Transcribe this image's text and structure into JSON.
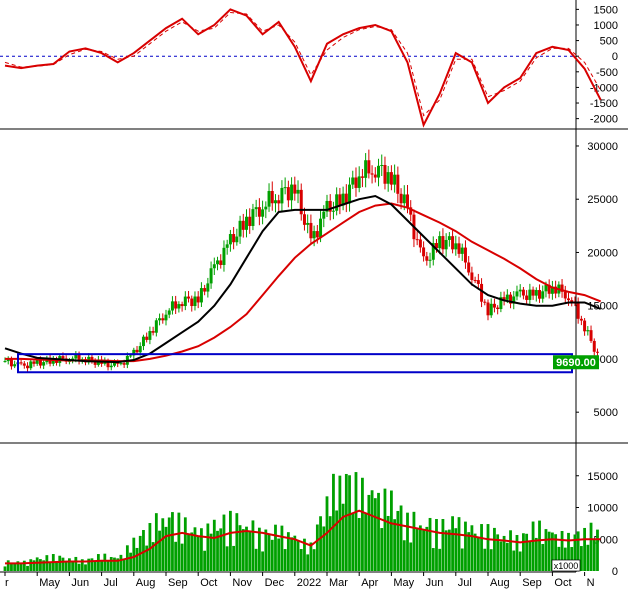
{
  "chart_data": [
    {
      "type": "line",
      "panel": "oscillator",
      "y_ticks": [
        "1500",
        "1000",
        "500",
        "0",
        "-500",
        "-1000",
        "-1500",
        "-2000"
      ],
      "ylim": [
        -2300,
        1800
      ],
      "reference_line": 0,
      "colors": {
        "main": "#d80000",
        "signal": "#d80000",
        "reference": "#0000c8"
      },
      "x_month_index": [
        0,
        0.5,
        1,
        1.5,
        2,
        2.5,
        3,
        3.5,
        4,
        4.5,
        5,
        5.5,
        6,
        6.5,
        7,
        7.5,
        8,
        8.5,
        9,
        9.5,
        10,
        10.5,
        11,
        11.5,
        12,
        12.5,
        13,
        13.5,
        14,
        14.5,
        15,
        15.5,
        16,
        16.5,
        17,
        17.5,
        18,
        18.5
      ],
      "series": [
        {
          "values": [
            -300,
            -380,
            -300,
            -250,
            150,
            250,
            100,
            -200,
            100,
            500,
            900,
            1200,
            700,
            1000,
            1500,
            1300,
            700,
            1100,
            300,
            -800,
            400,
            700,
            900,
            1000,
            800,
            -200,
            -2200,
            -1200,
            100,
            -200,
            -1500,
            -1000,
            -700,
            100,
            300,
            200,
            -400,
            -1400
          ]
        },
        {
          "values": [
            -200,
            -350,
            -320,
            -270,
            50,
            220,
            150,
            -100,
            0,
            400,
            800,
            1100,
            800,
            900,
            1400,
            1350,
            800,
            1000,
            450,
            -600,
            200,
            600,
            850,
            950,
            850,
            100,
            -1900,
            -1400,
            -100,
            -100,
            -1300,
            -1100,
            -800,
            -50,
            250,
            250,
            -200,
            -1100
          ]
        }
      ]
    },
    {
      "type": "candlestick",
      "panel": "price",
      "y_ticks": [
        "30000",
        "25000",
        "20000",
        "15000",
        "10000",
        "5000"
      ],
      "ylim": [
        2200,
        31500
      ],
      "last_price_label": "9690.00",
      "annotation": "support-zone-rectangle",
      "colors": {
        "up": "#00a000",
        "down": "#d80000",
        "ma_fast": "#000000",
        "ma_slow": "#d80000",
        "box": "#0000c8",
        "label_bg": "#00a000",
        "label_text": "#ffffff"
      },
      "x_month_index": [
        0,
        0.5,
        1,
        1.5,
        2,
        2.5,
        3,
        3.5,
        4,
        4.5,
        5,
        5.5,
        6,
        6.5,
        7,
        7.5,
        8,
        8.5,
        9,
        9.5,
        10,
        10.5,
        11,
        11.5,
        12,
        12.5,
        13,
        13.5,
        14,
        14.5,
        15,
        15.5,
        16,
        16.5,
        17,
        17.5,
        18,
        18.5
      ],
      "close": [
        9800,
        9300,
        9600,
        9900,
        10100,
        10000,
        9600,
        9300,
        10500,
        12500,
        14500,
        15500,
        15500,
        18500,
        21000,
        23000,
        24500,
        25500,
        26000,
        21000,
        24000,
        25000,
        27500,
        28000,
        27000,
        24000,
        19000,
        21000,
        21000,
        18000,
        14500,
        15500,
        16000,
        16000,
        16800,
        16000,
        13000,
        9690
      ],
      "series": [
        {
          "name": "",
          "values": [
            11000,
            10500,
            10100,
            10000,
            9900,
            9800,
            9750,
            9700,
            9900,
            10500,
            11500,
            12500,
            13500,
            15000,
            17000,
            19500,
            22000,
            23800,
            24000,
            24000,
            24000,
            24500,
            25000,
            25300,
            24500,
            23000,
            21500,
            20000,
            18500,
            17000,
            16000,
            15500,
            15200,
            15000,
            15000,
            15300,
            15300,
            14700
          ]
        },
        {
          "name": "",
          "values": [
            10000,
            10000,
            9950,
            9900,
            9850,
            9850,
            9850,
            9800,
            9800,
            10000,
            10300,
            10700,
            11200,
            12000,
            13000,
            14200,
            16000,
            17800,
            19500,
            20800,
            21800,
            22800,
            23800,
            24400,
            24600,
            24200,
            23500,
            22800,
            22000,
            21000,
            20200,
            19400,
            18500,
            17500,
            16700,
            16300,
            16000,
            15400
          ]
        }
      ]
    },
    {
      "type": "bar",
      "panel": "volume",
      "y_ticks": [
        "15000",
        "10000",
        "5000",
        "0"
      ],
      "ylim": [
        0,
        20000
      ],
      "unit_label": "x1000",
      "colors": {
        "bar": "#00a000",
        "ma": "#d80000"
      },
      "x_month_index": [
        0,
        0.5,
        1,
        1.5,
        2,
        2.5,
        3,
        3.5,
        4,
        4.5,
        5,
        5.5,
        6,
        6.5,
        7,
        7.5,
        8,
        8.5,
        9,
        9.5,
        10,
        10.5,
        11,
        11.5,
        12,
        12.5,
        13,
        13.5,
        14,
        14.5,
        15,
        15.5,
        16,
        16.5,
        17,
        17.5,
        18,
        18.5
      ],
      "values": [
        1200,
        1000,
        1500,
        1800,
        1600,
        1300,
        1900,
        1500,
        3500,
        5500,
        7000,
        6000,
        4500,
        5500,
        6500,
        6000,
        4500,
        5000,
        4000,
        3000,
        9000,
        12000,
        10000,
        9000,
        8500,
        6500,
        6000,
        5500,
        6000,
        5000,
        5000,
        4500,
        4000,
        5500,
        4500,
        4000,
        5000,
        5200
      ],
      "ma": [
        1200,
        1200,
        1300,
        1400,
        1500,
        1500,
        1600,
        1600,
        2200,
        3500,
        5500,
        6000,
        5500,
        5200,
        6000,
        6300,
        6000,
        5500,
        5000,
        4000,
        6000,
        8500,
        9500,
        8500,
        7500,
        7000,
        6500,
        6000,
        5800,
        5500,
        5000,
        4800,
        4500,
        4800,
        5000,
        4800,
        5000,
        5000
      ]
    }
  ],
  "x_axis": {
    "month_labels": [
      "r",
      "May",
      "Jun",
      "Jul",
      "Aug",
      "Sep",
      "Oct",
      "Nov",
      "Dec",
      "2022",
      "Mar",
      "Apr",
      "May",
      "Jun",
      "Jul",
      "Aug",
      "Sep",
      "Oct",
      "N"
    ],
    "month_index": [
      0,
      1,
      2,
      3,
      4,
      5,
      6,
      7,
      8,
      9,
      10,
      11,
      12,
      13,
      14,
      15,
      16,
      17,
      18
    ]
  }
}
